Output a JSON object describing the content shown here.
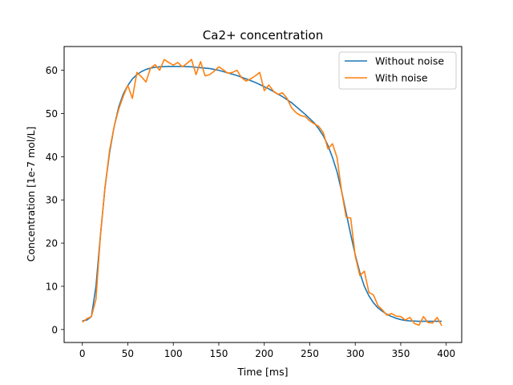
{
  "chart_data": {
    "type": "line",
    "title": "Ca2+ concentration",
    "xlabel": "Time [ms]",
    "ylabel": "Concentration [1e-7 mol/L]",
    "xlim": [
      -20,
      417
    ],
    "ylim": [
      -3,
      65.5
    ],
    "xticks": [
      0,
      50,
      100,
      150,
      200,
      250,
      300,
      350,
      400
    ],
    "yticks": [
      0,
      10,
      20,
      30,
      40,
      50,
      60
    ],
    "grid": false,
    "legend_position": "upper right",
    "series": [
      {
        "name": "Without noise",
        "color": "#1f77b4",
        "x": [
          0,
          5,
          10,
          15,
          20,
          25,
          30,
          35,
          40,
          45,
          50,
          55,
          60,
          65,
          70,
          75,
          80,
          85,
          90,
          95,
          100,
          105,
          110,
          115,
          120,
          125,
          130,
          135,
          140,
          145,
          150,
          155,
          160,
          165,
          170,
          175,
          180,
          185,
          190,
          195,
          200,
          205,
          210,
          215,
          220,
          225,
          230,
          235,
          240,
          245,
          250,
          255,
          260,
          265,
          270,
          275,
          280,
          285,
          290,
          295,
          300,
          305,
          310,
          315,
          320,
          325,
          330,
          335,
          340,
          345,
          350,
          355,
          360,
          365,
          370,
          375,
          380,
          385,
          390,
          395
        ],
        "y": [
          2.0,
          2.2,
          3.0,
          10.0,
          22.0,
          33.0,
          41.0,
          47.0,
          51.5,
          54.5,
          56.5,
          58.0,
          59.0,
          59.7,
          60.2,
          60.5,
          60.7,
          60.8,
          60.85,
          60.9,
          60.9,
          60.9,
          60.9,
          60.85,
          60.8,
          60.7,
          60.6,
          60.5,
          60.4,
          60.2,
          60.0,
          59.7,
          59.4,
          59.1,
          58.8,
          58.4,
          58.0,
          57.6,
          57.2,
          56.7,
          56.2,
          55.7,
          55.1,
          54.5,
          53.9,
          53.2,
          52.5,
          51.6,
          50.7,
          49.8,
          48.8,
          47.8,
          46.4,
          44.8,
          42.6,
          39.8,
          36.5,
          32.0,
          27.0,
          22.0,
          17.3,
          13.2,
          10.0,
          7.8,
          6.2,
          5.0,
          4.2,
          3.5,
          3.0,
          2.6,
          2.3,
          2.1,
          2.0,
          1.95,
          1.9,
          1.9,
          1.9,
          1.9,
          1.9,
          1.9
        ]
      },
      {
        "name": "With noise",
        "color": "#ff7f0e",
        "x": [
          0,
          5,
          10,
          15,
          20,
          25,
          30,
          35,
          40,
          45,
          50,
          55,
          60,
          65,
          70,
          75,
          80,
          85,
          90,
          95,
          100,
          105,
          110,
          115,
          120,
          125,
          130,
          135,
          140,
          145,
          150,
          155,
          160,
          165,
          170,
          175,
          180,
          185,
          190,
          195,
          200,
          205,
          210,
          215,
          220,
          225,
          230,
          235,
          240,
          245,
          250,
          255,
          260,
          265,
          270,
          275,
          280,
          285,
          290,
          295,
          300,
          305,
          310,
          315,
          320,
          325,
          330,
          335,
          340,
          345,
          350,
          355,
          360,
          365,
          370,
          375,
          380,
          385,
          390,
          395
        ],
        "y": [
          1.7,
          2.5,
          3.0,
          7.0,
          22.0,
          33.0,
          41.5,
          47.0,
          51.0,
          54.0,
          56.5,
          53.5,
          59.5,
          58.5,
          57.3,
          60.5,
          61.3,
          60.0,
          62.5,
          61.8,
          61.2,
          61.8,
          60.8,
          61.6,
          62.5,
          59.0,
          62.0,
          58.7,
          59.0,
          59.8,
          60.8,
          60.1,
          59.3,
          59.5,
          60.0,
          58.3,
          57.5,
          58.0,
          58.7,
          59.5,
          55.3,
          56.6,
          55.2,
          54.4,
          54.8,
          53.5,
          51.3,
          50.2,
          49.5,
          49.3,
          48.3,
          47.6,
          47.0,
          45.5,
          41.8,
          43.0,
          39.8,
          32.0,
          26.0,
          25.8,
          17.0,
          12.5,
          13.5,
          8.6,
          8.0,
          5.5,
          4.5,
          3.3,
          3.7,
          3.1,
          3.0,
          2.2,
          2.8,
          1.4,
          1.0,
          3.0,
          1.6,
          1.5,
          2.8,
          0.9
        ]
      }
    ]
  }
}
